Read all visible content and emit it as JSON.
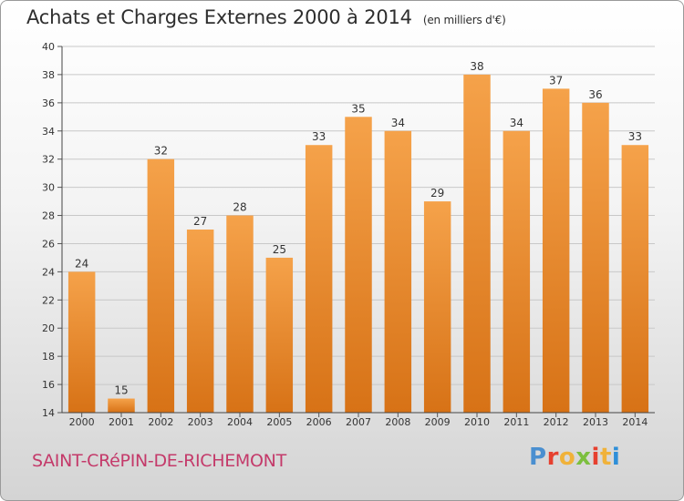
{
  "header": {
    "title": "Achats et Charges Externes 2000 à 2014",
    "subtitle": "(en milliers d'€)"
  },
  "footer": {
    "commune": "SAINT-CRéPIN-DE-RICHEMONT",
    "logo": "Proxiti"
  },
  "colors": {
    "bar_top": "#f5a24a",
    "bar_bottom": "#d77216",
    "commune": "#c43a6a",
    "logo": [
      "#4a8fd0",
      "#e6402f",
      "#f0b23a",
      "#7cbf3f",
      "#e6402f",
      "#f0b23a",
      "#2f8fd8"
    ]
  },
  "chart_data": {
    "type": "bar",
    "categories": [
      "2000",
      "2001",
      "2002",
      "2003",
      "2004",
      "2005",
      "2006",
      "2007",
      "2008",
      "2009",
      "2010",
      "2011",
      "2012",
      "2013",
      "2014"
    ],
    "values": [
      24,
      15,
      32,
      27,
      28,
      25,
      33,
      35,
      34,
      29,
      38,
      34,
      37,
      36,
      33
    ],
    "ylim": [
      14,
      40
    ],
    "yticks": [
      14,
      16,
      18,
      20,
      22,
      24,
      26,
      28,
      30,
      32,
      34,
      36,
      38,
      40
    ],
    "grid": true,
    "title": "Achats et Charges Externes 2000 à 2014",
    "xlabel": "",
    "ylabel": ""
  }
}
